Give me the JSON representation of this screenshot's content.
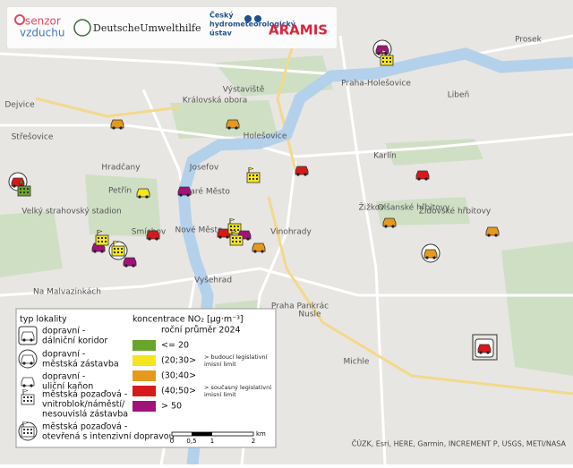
{
  "header": {
    "senzor_vzduchu": [
      "senzor",
      "vzduchu"
    ],
    "duh": "DeutscheUmwelthilfe",
    "chmi": [
      "Český",
      "hydrometeorologický",
      "ústav"
    ],
    "aramis": "ARAMIS"
  },
  "legend": {
    "type_title": "typ lokality",
    "types": [
      [
        "dopravní -",
        "dálniční koridor"
      ],
      [
        "dopravní -",
        "městská zástavba"
      ],
      [
        "dopravní -",
        "uliční kaňon"
      ],
      [
        "městská pozaďová -",
        "vnitroblok/náměstí/",
        "nesouvislá zástavba"
      ],
      [
        "městská pozaďová -",
        "otevřená s intenzivní dopravou"
      ]
    ],
    "conc_title": "koncentrace NO₂ [µg·m⁻³]",
    "conc_subtitle": "roční průměr 2024",
    "classes": [
      {
        "label": "<= 20",
        "color": "#6aa52b"
      },
      {
        "label": "(20;30>",
        "color": "#f5e51d"
      },
      {
        "label": "(30;40>",
        "color": "#e59a1e"
      },
      {
        "label": "(40;50>",
        "color": "#d7191c"
      },
      {
        "label": "> 50",
        "color": "#a3117a"
      }
    ],
    "notes": [
      [
        "> budoucí legislativní",
        "imisní limit"
      ],
      [
        "> současný legislativní",
        "imisní limit"
      ]
    ]
  },
  "scale": {
    "ticks": [
      "0",
      "0,5",
      "1",
      "2"
    ],
    "unit": "km"
  },
  "attribution": "ČÚZK, Esri, HERE, Garmin, INCREMENT P, USGS, METI/NASA",
  "places": [
    "Dejvice",
    "Střešovice",
    "Hradčany",
    "Petřín",
    "Velký strahovský stadion",
    "Smíchov",
    "Na Malvazinkách",
    "Josefov",
    "Staré Město",
    "Nové Město",
    "Vyšehrad",
    "Holešovice",
    "Praha-Holešovice",
    "Libeň",
    "Karlín",
    "Žižkov",
    "Vinohrady",
    "Olšanské hřbitovy",
    "Židovské hřbitovy",
    "Nusle",
    "Michle",
    "Prosek",
    "Královská obora",
    "Výstaviště",
    "Praha Pankrác"
  ]
}
